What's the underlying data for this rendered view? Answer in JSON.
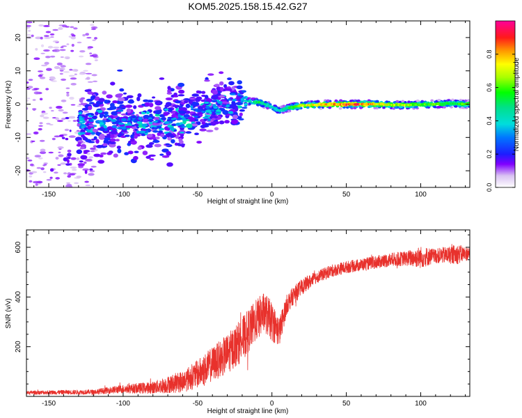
{
  "figure": {
    "title": "KOM5.2025.158.15.42.G27"
  },
  "chart_data": [
    {
      "type": "heatmap",
      "title": "KOM5.2025.158.15.42.G27",
      "xlabel": "Height of straight line (km)",
      "ylabel": "Frequency (Hz)",
      "xlim": [
        -165,
        133
      ],
      "ylim": [
        -25,
        25
      ],
      "xticks": [
        -150,
        -100,
        -50,
        0,
        50,
        100
      ],
      "xtick_labels": [
        "-150",
        "-100",
        "-50",
        "0",
        "50",
        "100"
      ],
      "yticks": [
        -20,
        -10,
        0,
        10,
        20
      ],
      "ytick_labels": [
        "-20",
        "-10",
        "0",
        "10",
        "20"
      ],
      "colorbar": {
        "label": "Normalized spectral amplitude",
        "range": [
          0,
          1
        ],
        "ticks": [
          0.0,
          0.2,
          0.4,
          0.6,
          0.8
        ],
        "tick_labels": [
          "0.0",
          "0.2",
          "0.4",
          "0.6",
          "0.8"
        ],
        "colormap": "gist_ncar-like (white-violet-blue-cyan-green-yellow-red-magenta)"
      },
      "ridge": {
        "description": "dominant Doppler frequency vs height",
        "x": [
          -130,
          -110,
          -95,
          -80,
          -65,
          -55,
          -45,
          -35,
          -25,
          -15,
          -8,
          0,
          5,
          10,
          15,
          20,
          30,
          40,
          50,
          60,
          70,
          80,
          90,
          100,
          110,
          120,
          130
        ],
        "y": [
          -5.2,
          -5.5,
          -5.0,
          -5.5,
          -5.2,
          -4.0,
          -1.5,
          -0.5,
          1.5,
          0.8,
          0.5,
          -0.8,
          -2.0,
          -1.2,
          -0.8,
          -0.4,
          -0.2,
          0.0,
          -0.1,
          0.0,
          0.0,
          -0.2,
          -0.3,
          -0.1,
          0.0,
          0.2,
          0.0
        ],
        "amplitude": [
          0.18,
          0.22,
          0.25,
          0.28,
          0.3,
          0.28,
          0.32,
          0.3,
          0.35,
          0.45,
          0.55,
          0.4,
          0.42,
          0.5,
          0.6,
          0.7,
          0.75,
          0.8,
          0.88,
          0.9,
          0.78,
          0.7,
          0.68,
          0.6,
          0.62,
          0.55,
          0.6
        ]
      },
      "scatter_noise": "weak random returns (amplitude < 0.15) at heights -165 to -120 km over full frequency range"
    },
    {
      "type": "line",
      "xlabel": "Height of straight line (km)",
      "ylabel": "SNR (v/v)",
      "xlim": [
        -165,
        133
      ],
      "ylim": [
        0,
        670
      ],
      "xticks": [
        -150,
        -100,
        -50,
        0,
        50,
        100
      ],
      "xtick_labels": [
        "-150",
        "-100",
        "-50",
        "0",
        "50",
        "100"
      ],
      "yticks": [
        200,
        400,
        600
      ],
      "ytick_labels": [
        "200",
        "400",
        "600"
      ],
      "color": "#e8312c",
      "trend": {
        "x": [
          -165,
          -120,
          -100,
          -80,
          -60,
          -50,
          -40,
          -30,
          -20,
          -15,
          -10,
          -5,
          0,
          5,
          10,
          15,
          20,
          30,
          40,
          50,
          60,
          70,
          80,
          90,
          100,
          110,
          120,
          133
        ],
        "y": [
          15,
          18,
          30,
          35,
          60,
          90,
          130,
          170,
          230,
          270,
          310,
          340,
          300,
          260,
          370,
          410,
          440,
          480,
          505,
          520,
          530,
          540,
          550,
          555,
          560,
          565,
          570,
          575
        ]
      },
      "noise_amplitude": {
        "x": [
          -165,
          -120,
          -80,
          -60,
          -40,
          -20,
          0,
          10,
          30,
          60,
          90,
          100,
          110,
          125,
          133
        ],
        "y": [
          8,
          10,
          25,
          45,
          70,
          90,
          80,
          40,
          25,
          25,
          30,
          45,
          30,
          40,
          25
        ]
      }
    }
  ]
}
